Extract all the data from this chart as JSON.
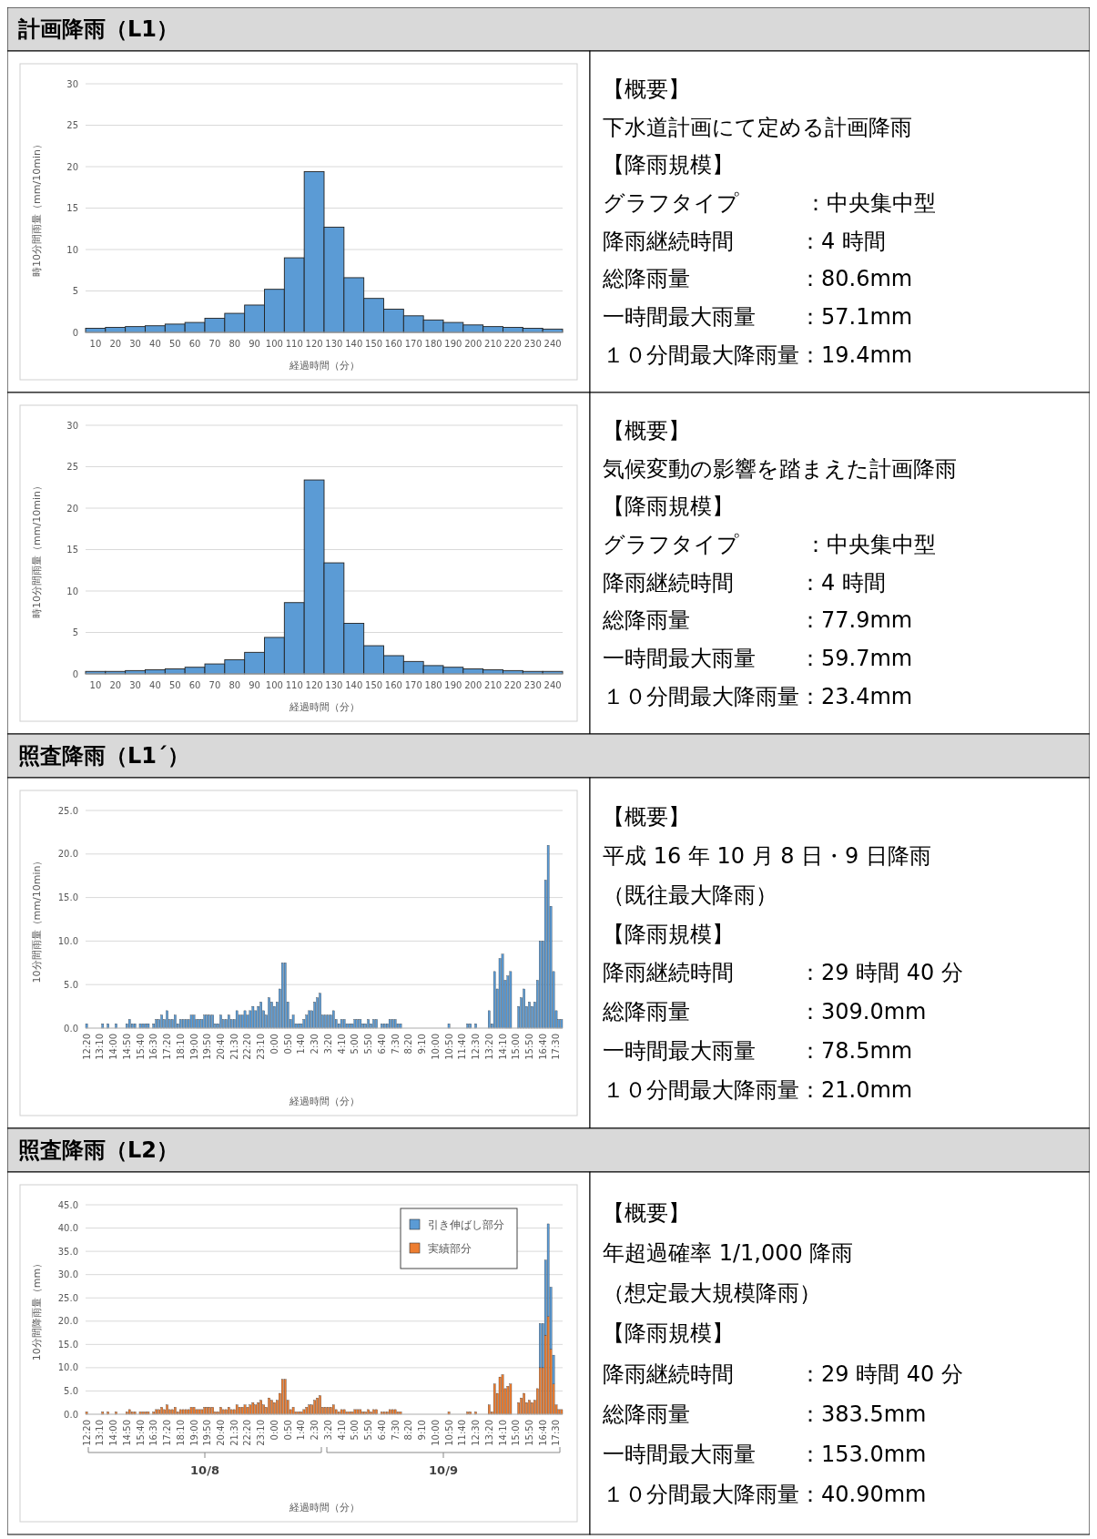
{
  "chart_data": [
    {
      "type": "bar",
      "title": "計画降雨（L1）",
      "categories": [
        "10",
        "20",
        "30",
        "40",
        "50",
        "60",
        "70",
        "80",
        "90",
        "100",
        "110",
        "120",
        "130",
        "140",
        "150",
        "160",
        "170",
        "180",
        "190",
        "200",
        "210",
        "220",
        "230",
        "240"
      ],
      "values": [
        0.5,
        0.6,
        0.7,
        0.8,
        1.0,
        1.2,
        1.7,
        2.3,
        3.3,
        5.2,
        9.0,
        19.4,
        12.7,
        6.6,
        4.1,
        2.8,
        2.0,
        1.5,
        1.2,
        0.9,
        0.7,
        0.6,
        0.5,
        0.4
      ],
      "color": "#5b9bd5",
      "ylim": [
        0,
        30
      ],
      "yticks": [
        0,
        5,
        10,
        15,
        20,
        25,
        30
      ],
      "grid": "y",
      "xlabel": "経過時間（分）",
      "ylabel": "時10分間雨量（mm/10min）"
    },
    {
      "type": "other",
      "annotations": [
        "【概要】",
        "下水道計画にて定める計画降雨",
        "【降雨規模】",
        "グラフタイプ　　　：中央集中型",
        "降雨継続時間　　　：4 時間",
        "総降雨量　　　　　：80.6mm",
        "一時間最大雨量　　：57.1mm",
        "１０分間最大降雨量：19.4mm"
      ]
    },
    {
      "type": "bar",
      "categories": [
        "10",
        "20",
        "30",
        "40",
        "50",
        "60",
        "70",
        "80",
        "90",
        "100",
        "110",
        "120",
        "130",
        "140",
        "150",
        "160",
        "170",
        "180",
        "190",
        "200",
        "210",
        "220",
        "230",
        "240"
      ],
      "values": [
        0.3,
        0.3,
        0.4,
        0.5,
        0.6,
        0.8,
        1.2,
        1.7,
        2.6,
        4.4,
        8.6,
        23.4,
        13.4,
        6.1,
        3.4,
        2.2,
        1.5,
        1.0,
        0.8,
        0.6,
        0.5,
        0.4,
        0.3,
        0.3
      ],
      "color": "#5b9bd5",
      "ylim": [
        0,
        30
      ],
      "yticks": [
        0,
        5,
        10,
        15,
        20,
        25,
        30
      ],
      "grid": "y",
      "xlabel": "経過時間（分）",
      "ylabel": "時10分間雨量（mm/10min）"
    },
    {
      "type": "other",
      "annotations": [
        "【概要】",
        "気候変動の影響を踏まえた計画降雨",
        "【降雨規模】",
        "グラフタイプ　　　：中央集中型",
        "降雨継続時間　　　：4 時間",
        "総降雨量　　　　　：77.9mm",
        "一時間最大雨量　　：59.7mm",
        "１０分間最大降雨量：23.4mm"
      ]
    },
    {
      "type": "bar",
      "title": "照査降雨（L1´）",
      "categories": [
        "12:20",
        null,
        null,
        null,
        null,
        "13:10",
        null,
        null,
        null,
        null,
        "14:00",
        null,
        null,
        null,
        null,
        "14:50",
        null,
        null,
        null,
        null,
        "15:40",
        null,
        null,
        null,
        null,
        "16:30",
        null,
        null,
        null,
        null,
        "17:20",
        null,
        null,
        null,
        null,
        "18:10",
        null,
        null,
        null,
        null,
        "19:00",
        null,
        null,
        null,
        null,
        "19:50",
        null,
        null,
        null,
        null,
        "20:40",
        null,
        null,
        null,
        null,
        "21:30",
        null,
        null,
        null,
        null,
        "22:20",
        null,
        null,
        null,
        null,
        "23:10",
        null,
        null,
        null,
        null,
        "0:00",
        null,
        null,
        null,
        null,
        "0:50",
        null,
        null,
        null,
        null,
        "1:40",
        null,
        null,
        null,
        null,
        "2:30",
        null,
        null,
        null,
        null,
        "3:20",
        null,
        null,
        null,
        null,
        "4:10",
        null,
        null,
        null,
        null,
        "5:00",
        null,
        null,
        null,
        null,
        "5:50",
        null,
        null,
        null,
        null,
        "6:40",
        null,
        null,
        null,
        null,
        "7:30",
        null,
        null,
        null,
        null,
        "8:20",
        null,
        null,
        null,
        null,
        "9:10",
        null,
        null,
        null,
        null,
        "10:00",
        null,
        null,
        null,
        null,
        "10:50",
        null,
        null,
        null,
        null,
        "11:40",
        null,
        null,
        null,
        null,
        "12:30",
        null,
        null,
        null,
        null,
        "13:20",
        null,
        null,
        null,
        null,
        "14:10",
        null,
        null,
        null,
        null,
        "15:00",
        null,
        null,
        null,
        null,
        "15:50",
        null,
        null,
        null,
        null,
        "16:40",
        null,
        null,
        null,
        null,
        "17:30",
        null,
        null
      ],
      "values": [
        0.5,
        0,
        0,
        0,
        0,
        0,
        0.5,
        0,
        0.5,
        0,
        0,
        0.5,
        0,
        0,
        0,
        0.5,
        1.0,
        0.5,
        0.5,
        0,
        0.5,
        0.5,
        0.5,
        0.5,
        0,
        0.5,
        1.0,
        1.0,
        1.5,
        1.0,
        2.0,
        1.0,
        1.0,
        1.5,
        0.5,
        1.0,
        1.0,
        1.0,
        1.0,
        1.5,
        1.5,
        1.0,
        1.0,
        1.0,
        1.5,
        1.5,
        1.5,
        1.5,
        0.5,
        0.5,
        1.5,
        1.0,
        1.0,
        1.5,
        1.0,
        1.0,
        2.0,
        1.5,
        1.5,
        2.0,
        1.5,
        2.0,
        2.5,
        2.0,
        2.5,
        3.0,
        2.0,
        1.5,
        3.5,
        3.0,
        2.5,
        3.0,
        4.5,
        7.5,
        7.5,
        3.0,
        1.0,
        1.5,
        0.5,
        0.5,
        0.5,
        1.0,
        1.5,
        2.0,
        2.0,
        3.0,
        3.5,
        4.0,
        1.5,
        1.5,
        1.5,
        1.5,
        2.0,
        1.0,
        0.5,
        1.0,
        1.0,
        0.5,
        0.5,
        0.5,
        1.0,
        1.0,
        1.0,
        0.5,
        0.5,
        1.0,
        0.5,
        1.0,
        1.0,
        0,
        0.5,
        0.5,
        0.5,
        1.0,
        1.0,
        1.0,
        0.5,
        0.5,
        0,
        0,
        0,
        0,
        0,
        0,
        0,
        0,
        0,
        0,
        0,
        0,
        0,
        0,
        0,
        0,
        0,
        0.5,
        0,
        0,
        0,
        0,
        0,
        0,
        0.5,
        0.5,
        0,
        0.5,
        0,
        0,
        0,
        0,
        2.0,
        0.5,
        6.5,
        4.5,
        8.0,
        8.5,
        5.5,
        6.0,
        6.5,
        0,
        0,
        2.5,
        3.5,
        4.5,
        2.5,
        3.0,
        2.5,
        3.0,
        5.5,
        10.0,
        10.0,
        17.0,
        21.0,
        14.0,
        6.5,
        2.0,
        1.0,
        1.0
      ],
      "color": "#5b9bd5",
      "ylim": [
        0,
        25
      ],
      "yticks": [
        {
          "value": 0,
          "label": "0.0"
        },
        {
          "value": 5,
          "label": "5.0"
        },
        {
          "value": 10,
          "label": "10.0"
        },
        {
          "value": 15,
          "label": "15.0"
        },
        {
          "value": 20,
          "label": "20.0"
        },
        {
          "value": 25,
          "label": "25.0"
        }
      ],
      "grid": "y",
      "xlabel": "経過時間（分）",
      "ylabel": "10分間雨量（mm/10min）"
    },
    {
      "type": "other",
      "annotations": [
        "【概要】",
        "平成 16 年 10 月 8 日・9 日降雨",
        "（既往最大降雨）",
        "【降雨規模】",
        "降雨継続時間　　　：29 時間 40 分",
        "総降雨量　　　　　：309.0mm",
        "一時間最大雨量　　：78.5mm",
        "１０分間最大降雨量：21.0mm"
      ]
    },
    {
      "type": "bar",
      "title": "照査降雨（L2）",
      "stacked": true,
      "legend": "top right",
      "categories": [
        "12:20",
        null,
        null,
        null,
        null,
        "13:10",
        null,
        null,
        null,
        null,
        "14:00",
        null,
        null,
        null,
        null,
        "14:50",
        null,
        null,
        null,
        null,
        "15:40",
        null,
        null,
        null,
        null,
        "16:30",
        null,
        null,
        null,
        null,
        "17:20",
        null,
        null,
        null,
        null,
        "18:10",
        null,
        null,
        null,
        null,
        "19:00",
        null,
        null,
        null,
        null,
        "19:50",
        null,
        null,
        null,
        null,
        "20:40",
        null,
        null,
        null,
        null,
        "21:30",
        null,
        null,
        null,
        null,
        "22:20",
        null,
        null,
        null,
        null,
        "23:10",
        null,
        null,
        null,
        null,
        "0:00",
        null,
        null,
        null,
        null,
        "0:50",
        null,
        null,
        null,
        null,
        "1:40",
        null,
        null,
        null,
        null,
        "2:30",
        null,
        null,
        null,
        null,
        "3:20",
        null,
        null,
        null,
        null,
        "4:10",
        null,
        null,
        null,
        null,
        "5:00",
        null,
        null,
        null,
        null,
        "5:50",
        null,
        null,
        null,
        null,
        "6:40",
        null,
        null,
        null,
        null,
        "7:30",
        null,
        null,
        null,
        null,
        "8:20",
        null,
        null,
        null,
        null,
        "9:10",
        null,
        null,
        null,
        null,
        "10:00",
        null,
        null,
        null,
        null,
        "10:50",
        null,
        null,
        null,
        null,
        "11:40",
        null,
        null,
        null,
        null,
        "12:30",
        null,
        null,
        null,
        null,
        "13:20",
        null,
        null,
        null,
        null,
        "14:10",
        null,
        null,
        null,
        null,
        "15:00",
        null,
        null,
        null,
        null,
        "15:50",
        null,
        null,
        null,
        null,
        "16:40",
        null,
        null,
        null,
        null,
        "17:30",
        null,
        null
      ],
      "series": [
        {
          "name": "実績部分",
          "color": "#ed7d31",
          "values": [
            0.5,
            0,
            0,
            0,
            0,
            0,
            0.5,
            0,
            0.5,
            0,
            0,
            0.5,
            0,
            0,
            0,
            0.5,
            1.0,
            0.5,
            0.5,
            0,
            0.5,
            0.5,
            0.5,
            0.5,
            0,
            0.5,
            1.0,
            1.0,
            1.5,
            1.0,
            2.0,
            1.0,
            1.0,
            1.5,
            0.5,
            1.0,
            1.0,
            1.0,
            1.0,
            1.5,
            1.5,
            1.0,
            1.0,
            1.0,
            1.5,
            1.5,
            1.5,
            1.5,
            0.5,
            0.5,
            1.5,
            1.0,
            1.0,
            1.5,
            1.0,
            1.0,
            2.0,
            1.5,
            1.5,
            2.0,
            1.5,
            2.0,
            2.5,
            2.0,
            2.5,
            3.0,
            2.0,
            1.5,
            3.5,
            3.0,
            2.5,
            3.0,
            4.5,
            7.5,
            7.5,
            3.0,
            1.0,
            1.5,
            0.5,
            0.5,
            0.5,
            1.0,
            1.5,
            2.0,
            2.0,
            3.0,
            3.5,
            4.0,
            1.5,
            1.5,
            1.5,
            1.5,
            2.0,
            1.0,
            0.5,
            1.0,
            1.0,
            0.5,
            0.5,
            0.5,
            1.0,
            1.0,
            1.0,
            0.5,
            0.5,
            1.0,
            0.5,
            1.0,
            1.0,
            0,
            0.5,
            0.5,
            0.5,
            1.0,
            1.0,
            1.0,
            0.5,
            0.5,
            0,
            0,
            0,
            0,
            0,
            0,
            0,
            0,
            0,
            0,
            0,
            0,
            0,
            0,
            0,
            0,
            0,
            0.5,
            0,
            0,
            0,
            0,
            0,
            0,
            0.5,
            0.5,
            0,
            0.5,
            0,
            0,
            0,
            0,
            2.0,
            0.5,
            6.5,
            4.5,
            8.0,
            8.5,
            5.5,
            6.0,
            6.5,
            0,
            0,
            2.5,
            3.5,
            4.5,
            2.5,
            3.0,
            2.5,
            3.0,
            5.5,
            10.0,
            10.0,
            17.0,
            21.0,
            14.0,
            6.5,
            2.0,
            1.0,
            1.0
          ]
        },
        {
          "name": "引き伸ばし部分",
          "color": "#5b9bd5",
          "values": [
            null,
            null,
            null,
            null,
            null,
            null,
            null,
            null,
            null,
            null,
            null,
            null,
            null,
            null,
            null,
            null,
            null,
            null,
            null,
            null,
            null,
            null,
            null,
            null,
            null,
            null,
            null,
            null,
            null,
            null,
            null,
            null,
            null,
            null,
            null,
            null,
            null,
            null,
            null,
            null,
            null,
            null,
            null,
            null,
            null,
            null,
            null,
            null,
            null,
            null,
            null,
            null,
            null,
            null,
            null,
            null,
            null,
            null,
            null,
            null,
            null,
            null,
            null,
            null,
            null,
            null,
            null,
            null,
            null,
            null,
            null,
            null,
            null,
            null,
            null,
            null,
            null,
            null,
            null,
            null,
            null,
            null,
            null,
            null,
            null,
            null,
            null,
            null,
            null,
            null,
            null,
            null,
            null,
            null,
            null,
            null,
            null,
            null,
            null,
            null,
            null,
            null,
            null,
            null,
            null,
            null,
            null,
            null,
            null,
            null,
            null,
            null,
            null,
            null,
            null,
            null,
            null,
            null,
            null,
            null,
            null,
            null,
            null,
            null,
            null,
            null,
            null,
            null,
            null,
            null,
            null,
            null,
            null,
            null,
            null,
            null,
            null,
            null,
            null,
            null,
            null,
            null,
            null,
            null,
            null,
            null,
            null,
            null,
            null,
            null,
            null,
            null,
            null,
            null,
            null,
            null,
            null,
            null,
            null,
            null,
            null,
            null,
            null,
            null,
            null,
            null,
            null,
            null,
            null,
            9.5,
            9.5,
            16.1,
            19.9,
            13.3,
            6.2,
            null,
            null,
            null
          ]
        }
      ],
      "ylim": [
        0,
        45
      ],
      "yticks": [
        {
          "value": 0,
          "label": "0.0"
        },
        {
          "value": 5,
          "label": "5.0"
        },
        {
          "value": 10,
          "label": "10.0"
        },
        {
          "value": 15,
          "label": "15.0"
        },
        {
          "value": 20,
          "label": "20.0"
        },
        {
          "value": 25,
          "label": "25.0"
        },
        {
          "value": 30,
          "label": "30.0"
        },
        {
          "value": 35,
          "label": "35.0"
        },
        {
          "value": 40,
          "label": "40.0"
        },
        {
          "value": 45,
          "label": "45.0"
        }
      ],
      "grid": "y",
      "xlabel": "経過時間（分）",
      "ylabel": "10分間降雨量（mm）",
      "annotations": [
        "10/8",
        "10/9"
      ]
    },
    {
      "type": "other",
      "annotations": [
        "【概要】",
        "年超過確率 1/1,000 降雨",
        "（想定最大規模降雨）",
        "【降雨規模】",
        "降雨継続時間　　　：29 時間 40 分",
        "総降雨量　　　　　：383.5mm",
        "一時間最大雨量　　：153.0mm",
        "１０分間最大降雨量：40.90mm"
      ]
    }
  ]
}
